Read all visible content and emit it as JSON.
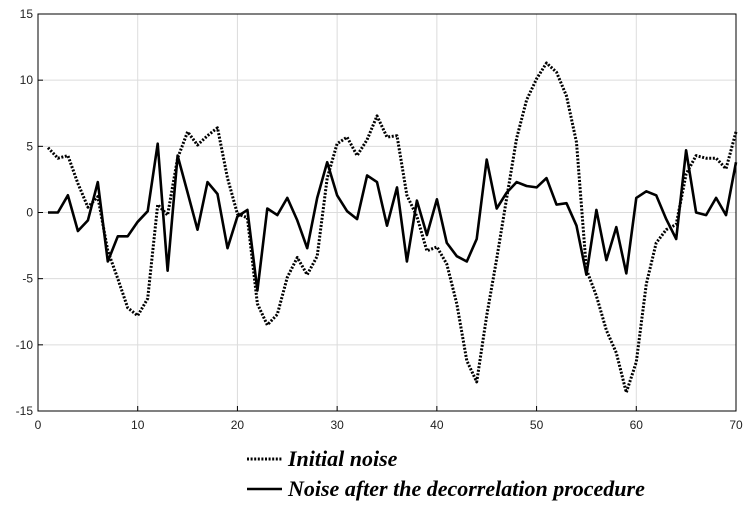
{
  "chart_data": {
    "type": "line",
    "xlim": [
      0,
      70
    ],
    "ylim": [
      -15,
      15
    ],
    "x_ticks": [
      0,
      10,
      20,
      30,
      40,
      50,
      60,
      70
    ],
    "y_ticks": [
      15,
      10,
      5,
      0,
      -5,
      -10,
      -15
    ],
    "grid": true,
    "legend_position": "bottom",
    "series": [
      {
        "name": "Initial noise",
        "style": "dotted",
        "color": "#000000",
        "x": [
          1,
          2,
          3,
          4,
          5,
          6,
          7,
          8,
          9,
          10,
          11,
          12,
          13,
          14,
          15,
          16,
          17,
          18,
          19,
          20,
          21,
          22,
          23,
          24,
          25,
          26,
          27,
          28,
          29,
          30,
          31,
          32,
          33,
          34,
          35,
          36,
          37,
          38,
          39,
          40,
          41,
          42,
          43,
          44,
          45,
          46,
          47,
          48,
          49,
          50,
          51,
          52,
          53,
          54,
          55,
          56,
          57,
          58,
          59,
          60,
          61,
          62,
          63,
          64,
          65,
          66,
          67,
          68,
          69,
          70
        ],
        "values": [
          4.9,
          4.1,
          4.3,
          2.2,
          0.4,
          1.2,
          -2.9,
          -5,
          -7.2,
          -7.8,
          -6.5,
          0.6,
          -0.2,
          4.1,
          6.1,
          5.1,
          5.8,
          6.4,
          2.6,
          -0.1,
          -0.4,
          -6.9,
          -8.5,
          -7.7,
          -4.9,
          -3.4,
          -4.7,
          -3.3,
          2.6,
          5.2,
          5.7,
          4.3,
          5.5,
          7.3,
          5.7,
          5.8,
          1.3,
          -0.3,
          -2.9,
          -2.6,
          -3.9,
          -6.9,
          -11.2,
          -12.8,
          -7.8,
          -3.5,
          1.1,
          5.6,
          8.5,
          10.1,
          11.3,
          10.6,
          8.8,
          5.3,
          -4.3,
          -6.3,
          -8.9,
          -10.6,
          -13.6,
          -11.3,
          -5.4,
          -2.3,
          -1.3,
          -0.9,
          2.9,
          4.3,
          4.1,
          4.1,
          3.3,
          6.1
        ]
      },
      {
        "name": "Noise after the decorrelation procedure",
        "style": "solid",
        "color": "#000000",
        "x": [
          1,
          2,
          3,
          4,
          5,
          6,
          7,
          8,
          9,
          10,
          11,
          12,
          13,
          14,
          15,
          16,
          17,
          18,
          19,
          20,
          21,
          22,
          23,
          24,
          25,
          26,
          27,
          28,
          29,
          30,
          31,
          32,
          33,
          34,
          35,
          36,
          37,
          38,
          39,
          40,
          41,
          42,
          43,
          44,
          45,
          46,
          47,
          48,
          49,
          50,
          51,
          52,
          53,
          54,
          55,
          56,
          57,
          58,
          59,
          60,
          61,
          62,
          63,
          64,
          65,
          66,
          67,
          68,
          69,
          70
        ],
        "values": [
          0,
          0,
          1.3,
          -1.4,
          -0.6,
          2.3,
          -3.7,
          -1.8,
          -1.8,
          -0.7,
          0.1,
          5.2,
          -4.4,
          4.3,
          1.5,
          -1.3,
          2.3,
          1.4,
          -2.7,
          -0.3,
          0.2,
          -5.9,
          0.3,
          -0.2,
          1.1,
          -0.6,
          -2.7,
          1.1,
          3.8,
          1.3,
          0.1,
          -0.5,
          2.8,
          2.3,
          -1,
          1.9,
          -3.7,
          0.9,
          -1.7,
          1,
          -2.3,
          -3.3,
          -3.7,
          -2,
          4,
          0.3,
          1.5,
          2.3,
          2,
          1.9,
          2.6,
          0.6,
          0.7,
          -1,
          -4.7,
          0.2,
          -3.6,
          -1.1,
          -4.6,
          1.1,
          1.6,
          1.3,
          -0.5,
          -2,
          4.7,
          0,
          -0.2,
          1.1,
          -0.2,
          3.8
        ]
      }
    ]
  }
}
